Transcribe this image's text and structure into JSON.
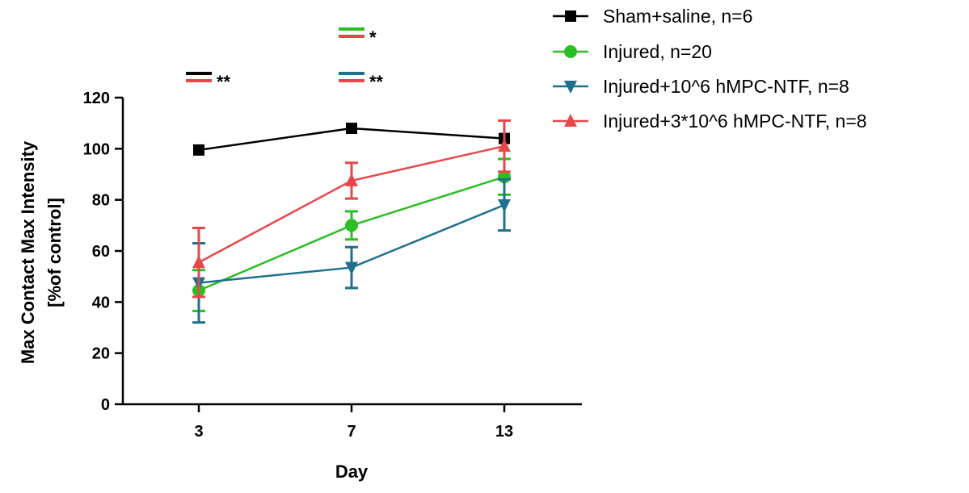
{
  "chart_data": {
    "type": "line",
    "title": "",
    "xlabel": "Day",
    "ylabel_line1": "Max Contact Max Intensity",
    "ylabel_line2": "[%of control]",
    "categories": [
      "3",
      "7",
      "13"
    ],
    "ylim": [
      0,
      120
    ],
    "yticks": [
      0,
      20,
      40,
      60,
      80,
      100,
      120
    ],
    "ytick_labels": [
      "0",
      "20",
      "40",
      "60",
      "80",
      "100",
      "120"
    ],
    "grid": false,
    "legend_position": "top-right",
    "series": [
      {
        "name": "Sham+saline, n=6",
        "color": "#000000",
        "marker": "square",
        "values": [
          99.5,
          108,
          104
        ],
        "errors": [
          0,
          0,
          0
        ]
      },
      {
        "name": "Injured, n=20",
        "color": "#2bbf24",
        "marker": "circle",
        "values": [
          44.5,
          70,
          89
        ],
        "errors": [
          8,
          5.5,
          7
        ]
      },
      {
        "name": "Injured+10^6 hMPC-NTF, n=8",
        "color": "#1f6f8f",
        "marker": "triangle-down",
        "values": [
          47.5,
          53.5,
          78
        ],
        "errors": [
          15.5,
          8,
          10
        ]
      },
      {
        "name": "Injured+3*10^6 hMPC-NTF, n=8",
        "color": "#e8474a",
        "marker": "triangle-up",
        "values": [
          55.5,
          87.5,
          101
        ],
        "errors": [
          13.5,
          7,
          10
        ]
      }
    ],
    "annotations": [
      {
        "category": "3",
        "colors": [
          "#000000",
          "#e8474a"
        ],
        "text": "**"
      },
      {
        "category": "7",
        "colors": [
          "#2bbf24",
          "#e8474a"
        ],
        "text": "*"
      },
      {
        "category": "7",
        "colors": [
          "#1f6f8f",
          "#e8474a"
        ],
        "text": "**"
      }
    ]
  }
}
